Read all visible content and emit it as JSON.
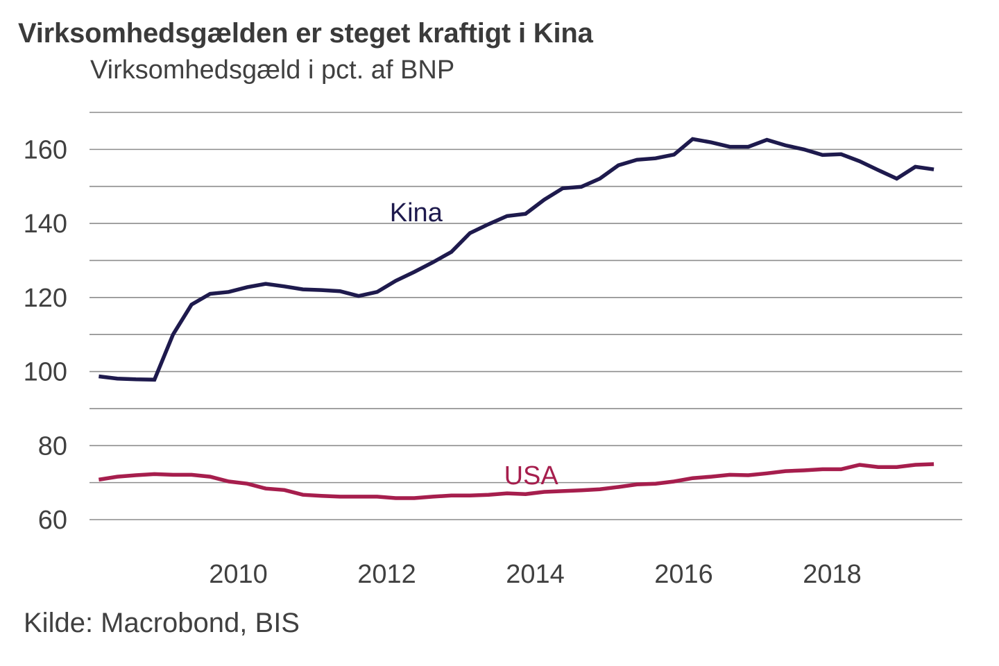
{
  "chart_data": {
    "type": "line",
    "title": "Virksomhedsgælden er steget kraftigt i Kina",
    "subtitle": "Virksomhedsgæld i pct. af BNP",
    "xlabel": "",
    "ylabel": "",
    "source": "Kilde: Macrobond, BIS",
    "ylim": [
      60,
      170
    ],
    "yticks": [
      60,
      80,
      100,
      120,
      140,
      160
    ],
    "ygrid_step": 10,
    "xlim": [
      2008.0,
      2019.75
    ],
    "xticks": [
      2010,
      2012,
      2014,
      2016,
      2018
    ],
    "xtick_labels": [
      "2010",
      "2012",
      "2014",
      "2016",
      "2018"
    ],
    "grid": true,
    "legend": "inline-labels",
    "x": [
      2008.125,
      2008.375,
      2008.625,
      2008.875,
      2009.125,
      2009.375,
      2009.625,
      2009.875,
      2010.125,
      2010.375,
      2010.625,
      2010.875,
      2011.125,
      2011.375,
      2011.625,
      2011.875,
      2012.125,
      2012.375,
      2012.625,
      2012.875,
      2013.125,
      2013.375,
      2013.625,
      2013.875,
      2014.125,
      2014.375,
      2014.625,
      2014.875,
      2015.125,
      2015.375,
      2015.625,
      2015.875,
      2016.125,
      2016.375,
      2016.625,
      2016.875,
      2017.125,
      2017.375,
      2017.625,
      2017.875,
      2018.125,
      2018.375,
      2018.625,
      2018.875,
      2019.125,
      2019.375
    ],
    "series": [
      {
        "name": "Kina",
        "color": "#1e1a4d",
        "label_position": {
          "x": 2012.4,
          "y": 143
        },
        "values": [
          98.7,
          98.1,
          97.9,
          97.8,
          110.0,
          118.1,
          121.0,
          121.5,
          122.8,
          123.7,
          123.0,
          122.2,
          122.0,
          121.7,
          120.4,
          121.5,
          124.5,
          126.9,
          129.5,
          132.3,
          137.4,
          139.8,
          142.0,
          142.6,
          146.4,
          149.5,
          149.9,
          152.1,
          155.7,
          157.2,
          157.6,
          158.6,
          162.8,
          161.9,
          160.7,
          160.7,
          162.6,
          161.1,
          160.0,
          158.5,
          158.7,
          156.8,
          154.4,
          152.1,
          155.3,
          154.6
        ]
      },
      {
        "name": "USA",
        "color": "#a61e4d",
        "label_position": {
          "x": 2013.95,
          "y": 72
        },
        "values": [
          70.8,
          71.6,
          72.0,
          72.3,
          72.1,
          72.1,
          71.6,
          70.3,
          69.7,
          68.4,
          68.0,
          66.7,
          66.4,
          66.2,
          66.2,
          66.2,
          65.8,
          65.8,
          66.2,
          66.5,
          66.5,
          66.7,
          67.1,
          66.9,
          67.5,
          67.7,
          67.9,
          68.2,
          68.8,
          69.5,
          69.7,
          70.3,
          71.2,
          71.6,
          72.1,
          72.0,
          72.5,
          73.1,
          73.3,
          73.6,
          73.6,
          74.8,
          74.2,
          74.2,
          74.8,
          75.0
        ]
      }
    ]
  }
}
